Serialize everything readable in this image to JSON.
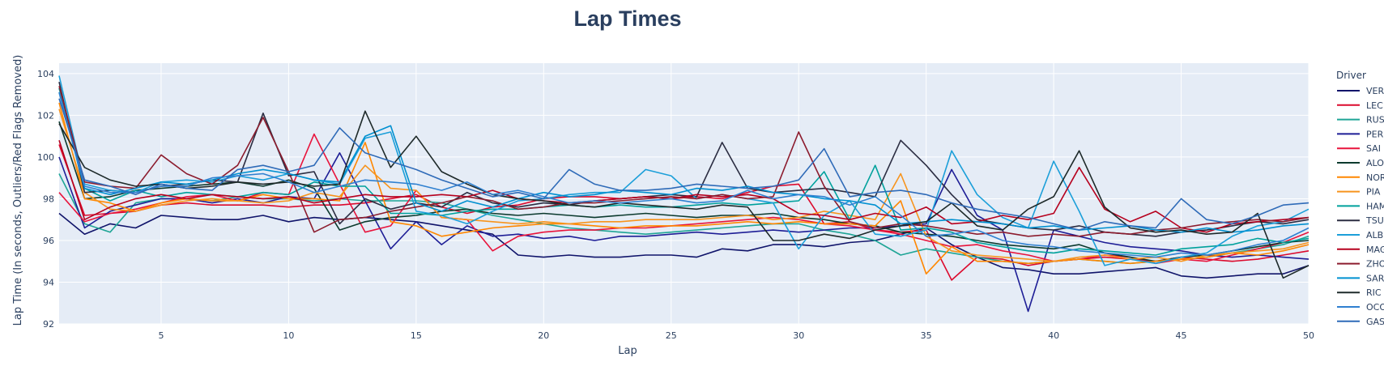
{
  "chart_data": {
    "type": "line",
    "title": "Lap Times",
    "xlabel": "Lap",
    "ylabel": "Lap Time (In seconds, Outliers/Red Flags Removed)",
    "xlim": [
      1,
      50
    ],
    "ylim": [
      92,
      104.5
    ],
    "x_ticks": [
      5,
      10,
      15,
      20,
      25,
      30,
      35,
      40,
      45,
      50
    ],
    "y_ticks": [
      92,
      94,
      96,
      98,
      100,
      102,
      104
    ],
    "grid": true,
    "legend_title": "Driver",
    "legend_position": "right",
    "plot_bgcolor": "#e5ecf6",
    "series": [
      {
        "name": "VER",
        "color": "#10146a",
        "values": [
          97.3,
          96.3,
          96.8,
          96.6,
          97.2,
          97.1,
          97.0,
          97.0,
          97.2,
          96.9,
          97.1,
          97.0,
          97.1,
          97.0,
          96.9,
          96.7,
          96.5,
          96.3,
          95.3,
          95.2,
          95.3,
          95.2,
          95.2,
          95.3,
          95.3,
          95.2,
          95.6,
          95.5,
          95.8,
          95.8,
          95.7,
          95.9,
          96.0,
          96.3,
          96.6,
          95.8,
          95.2,
          94.7,
          94.6,
          94.4,
          94.4,
          94.5,
          94.6,
          94.7,
          94.3,
          94.2,
          94.3,
          94.4,
          94.4,
          94.8
        ]
      },
      {
        "name": "LEC",
        "color": "#dc0a2d",
        "values": [
          100.6,
          97.2,
          97.3,
          97.4,
          97.7,
          97.8,
          97.7,
          97.7,
          97.7,
          97.6,
          97.7,
          97.7,
          97.8,
          98.0,
          98.2,
          97.6,
          97.3,
          97.6,
          97.7,
          98.0,
          98.1,
          98.1,
          98.0,
          98.1,
          98.0,
          98.1,
          98.0,
          98.3,
          98.6,
          98.7,
          96.8,
          96.9,
          96.5,
          96.4,
          96.5,
          94.1,
          95.2,
          95.1,
          94.8,
          95.0,
          95.1,
          95.2,
          95.1,
          95.0,
          95.2,
          95.1,
          95.0,
          95.1,
          95.3,
          95.5
        ]
      },
      {
        "name": "RUS",
        "color": "#1fa596",
        "values": [
          99.2,
          96.8,
          96.4,
          97.8,
          98.0,
          98.0,
          97.9,
          98.1,
          98.0,
          98.0,
          97.9,
          98.0,
          97.9,
          97.9,
          97.9,
          97.8,
          97.5,
          97.2,
          97.0,
          96.8,
          96.6,
          96.5,
          96.4,
          96.3,
          96.4,
          96.5,
          96.6,
          96.7,
          96.8,
          96.8,
          96.5,
          96.3,
          96.0,
          95.3,
          95.6,
          95.4,
          95.2,
          95.0,
          94.9,
          95.0,
          95.1,
          95.0,
          94.9,
          95.0,
          95.1,
          95.2,
          95.4,
          95.6,
          95.8,
          96.2
        ]
      },
      {
        "name": "PER",
        "color": "#1e1e96",
        "values": [
          100.0,
          96.6,
          97.4,
          97.7,
          98.0,
          98.0,
          97.8,
          98.0,
          97.8,
          98.1,
          98.0,
          100.2,
          97.9,
          95.6,
          96.9,
          95.8,
          96.7,
          96.2,
          96.3,
          96.1,
          96.2,
          96.0,
          96.2,
          96.2,
          96.3,
          96.4,
          96.3,
          96.4,
          96.5,
          96.4,
          96.5,
          96.6,
          96.6,
          96.7,
          96.8,
          99.4,
          97.2,
          96.5,
          92.6,
          96.5,
          96.2,
          95.9,
          95.7,
          95.6,
          95.5,
          95.3,
          95.2,
          95.3,
          95.2,
          95.1
        ]
      },
      {
        "name": "SAI",
        "color": "#e8143c",
        "values": [
          98.3,
          96.9,
          97.3,
          97.5,
          97.8,
          98.1,
          98.2,
          97.9,
          98.3,
          98.2,
          101.1,
          98.7,
          96.4,
          96.7,
          98.4,
          97.1,
          97.0,
          95.5,
          96.2,
          96.4,
          96.5,
          96.5,
          96.6,
          96.6,
          96.7,
          96.8,
          96.9,
          97.0,
          97.1,
          97.0,
          96.8,
          96.7,
          96.5,
          96.3,
          96.0,
          95.7,
          95.8,
          95.5,
          95.3,
          95.0,
          95.1,
          95.3,
          95.2,
          94.9,
          95.1,
          95.0,
          95.3,
          95.6,
          95.9,
          96.4
        ]
      },
      {
        "name": "ALO",
        "color": "#0c3a2e",
        "values": [
          101.7,
          98.0,
          98.1,
          98.4,
          98.5,
          98.6,
          98.7,
          98.8,
          98.6,
          98.9,
          98.5,
          96.5,
          96.9,
          97.1,
          97.2,
          97.4,
          97.5,
          97.3,
          97.2,
          97.3,
          97.2,
          97.1,
          97.2,
          97.3,
          97.2,
          97.1,
          97.2,
          97.2,
          97.3,
          97.1,
          97.0,
          96.8,
          96.7,
          96.4,
          96.3,
          96.2,
          96.0,
          95.8,
          95.7,
          95.6,
          95.8,
          95.4,
          95.2,
          95.0,
          95.2,
          95.3,
          95.5,
          95.7,
          95.9,
          96.0
        ]
      },
      {
        "name": "NOR",
        "color": "#ff8700",
        "values": [
          102.6,
          98.0,
          97.8,
          97.4,
          97.8,
          98.0,
          97.9,
          97.9,
          98.2,
          98.0,
          98.0,
          97.9,
          100.7,
          96.9,
          96.7,
          96.2,
          96.4,
          96.6,
          96.7,
          96.8,
          96.8,
          96.7,
          96.6,
          96.7,
          96.7,
          96.7,
          96.8,
          96.9,
          96.8,
          96.9,
          96.8,
          96.8,
          96.7,
          97.9,
          94.4,
          95.7,
          95.0,
          95.0,
          94.9,
          95.0,
          95.1,
          95.0,
          94.9,
          95.0,
          95.1,
          95.2,
          95.4,
          95.3,
          95.5,
          95.8
        ]
      },
      {
        "name": "PIA",
        "color": "#f7941d",
        "values": [
          102.3,
          98.3,
          97.5,
          97.4,
          97.7,
          97.9,
          98.0,
          97.9,
          97.8,
          97.9,
          98.3,
          98.1,
          99.6,
          98.5,
          98.4,
          97.1,
          97.0,
          96.9,
          96.8,
          96.9,
          96.8,
          96.9,
          96.9,
          97.0,
          97.0,
          97.0,
          97.1,
          97.2,
          97.0,
          97.1,
          97.4,
          97.2,
          97.0,
          99.2,
          96.2,
          95.5,
          95.3,
          95.2,
          95.1,
          95.0,
          95.2,
          95.3,
          95.1,
          95.2,
          95.0,
          95.3,
          95.4,
          95.5,
          95.6,
          95.9
        ]
      },
      {
        "name": "HAM",
        "color": "#00a19c",
        "values": [
          103.3,
          98.5,
          97.9,
          98.4,
          98.1,
          98.3,
          98.2,
          98.1,
          98.3,
          98.2,
          98.8,
          98.6,
          98.6,
          97.3,
          97.3,
          97.2,
          97.4,
          97.5,
          97.5,
          97.6,
          97.7,
          97.6,
          97.7,
          97.6,
          97.6,
          97.7,
          97.8,
          97.7,
          97.8,
          97.9,
          99.3,
          97.0,
          99.6,
          96.5,
          96.6,
          96.4,
          95.9,
          95.7,
          95.5,
          95.4,
          95.6,
          95.5,
          95.4,
          95.3,
          95.6,
          95.7,
          95.8,
          96.1,
          95.9,
          96.1
        ]
      },
      {
        "name": "TSU",
        "color": "#2b2d42",
        "values": [
          103.6,
          98.3,
          98.4,
          98.3,
          98.6,
          98.7,
          98.9,
          98.8,
          102.1,
          99.1,
          99.3,
          96.8,
          98.0,
          97.5,
          97.8,
          97.6,
          98.3,
          97.8,
          97.6,
          97.8,
          97.7,
          97.9,
          98.0,
          98.1,
          98.2,
          98.1,
          100.7,
          98.5,
          98.3,
          98.4,
          98.5,
          98.3,
          98.1,
          100.8,
          99.6,
          98.2,
          97.0,
          96.8,
          96.6,
          96.5,
          96.7,
          96.4,
          96.3,
          96.2,
          96.4,
          96.5,
          96.7,
          96.9,
          96.8,
          97.0
        ]
      },
      {
        "name": "ALB",
        "color": "#1c9fd9",
        "values": [
          103.9,
          98.7,
          98.4,
          98.3,
          98.8,
          98.9,
          98.8,
          99.1,
          98.9,
          99.2,
          98.9,
          98.7,
          100.9,
          101.2,
          97.4,
          97.2,
          96.8,
          97.4,
          97.9,
          98.0,
          98.2,
          98.3,
          98.3,
          99.4,
          99.1,
          98.0,
          98.2,
          98.0,
          97.8,
          95.6,
          97.2,
          97.9,
          96.3,
          96.2,
          96.5,
          100.3,
          98.2,
          97.1,
          96.6,
          99.8,
          97.4,
          94.8,
          95.1,
          94.9,
          95.2,
          95.4,
          96.2,
          96.7,
          96.9,
          97.5
        ]
      },
      {
        "name": "MAG",
        "color": "#b6001e",
        "values": [
          100.8,
          97.0,
          97.6,
          98.0,
          98.2,
          98.0,
          98.2,
          98.1,
          98.0,
          98.1,
          97.8,
          98.0,
          98.2,
          98.1,
          98.1,
          98.2,
          98.1,
          98.4,
          98.0,
          97.9,
          97.8,
          97.9,
          98.0,
          98.1,
          98.0,
          98.2,
          98.1,
          98.2,
          98.0,
          97.3,
          97.2,
          97.0,
          97.3,
          97.1,
          97.6,
          96.8,
          96.9,
          97.2,
          97.0,
          97.3,
          99.5,
          97.5,
          96.9,
          97.4,
          96.6,
          96.4,
          96.8,
          96.9,
          97.0,
          97.1
        ]
      },
      {
        "name": "ZHO",
        "color": "#8c1c2e",
        "values": [
          103.4,
          98.8,
          98.6,
          98.5,
          100.1,
          99.2,
          98.7,
          99.6,
          101.9,
          99.3,
          96.4,
          97.0,
          97.1,
          97.4,
          97.6,
          97.8,
          98.1,
          97.9,
          97.5,
          97.6,
          97.8,
          97.8,
          97.9,
          98.0,
          98.1,
          98.0,
          98.2,
          98.0,
          98.1,
          101.2,
          98.6,
          96.9,
          96.6,
          96.8,
          96.7,
          96.5,
          96.3,
          96.4,
          96.2,
          96.3,
          96.2,
          96.4,
          96.3,
          96.5,
          96.6,
          96.8,
          96.9,
          97.0,
          96.9,
          97.1
        ]
      },
      {
        "name": "SAR",
        "color": "#0090d0",
        "values": [
          103.1,
          98.5,
          98.2,
          98.5,
          98.8,
          98.7,
          98.9,
          99.2,
          99.4,
          99.2,
          98.9,
          98.8,
          101.0,
          101.5,
          97.8,
          97.4,
          97.9,
          97.6,
          98.0,
          98.3,
          98.1,
          98.2,
          98.4,
          98.3,
          98.2,
          98.5,
          98.4,
          98.6,
          98.3,
          98.2,
          98.0,
          97.9,
          97.7,
          96.8,
          96.9,
          97.0,
          96.9,
          96.8,
          96.6,
          96.7,
          96.5,
          96.6,
          96.7,
          96.5,
          96.4,
          96.6,
          96.4,
          96.5,
          96.7,
          96.8
        ]
      },
      {
        "name": "RIC",
        "color": "#1e2a2a",
        "values": [
          101.6,
          99.5,
          98.9,
          98.6,
          98.7,
          98.5,
          98.6,
          98.8,
          98.7,
          98.8,
          98.6,
          98.7,
          102.2,
          99.5,
          101.0,
          99.3,
          98.7,
          98.2,
          98.0,
          97.9,
          97.7,
          97.6,
          97.8,
          97.7,
          97.6,
          97.5,
          97.7,
          97.6,
          96.0,
          96.0,
          96.3,
          96.1,
          96.5,
          96.7,
          96.9,
          97.8,
          96.7,
          96.5,
          97.5,
          98.1,
          100.3,
          97.6,
          96.6,
          96.4,
          96.5,
          96.3,
          96.4,
          97.3,
          94.2,
          94.8
        ]
      },
      {
        "name": "OCO",
        "color": "#2f80d0",
        "values": [
          103.1,
          98.6,
          98.3,
          98.3,
          98.6,
          98.6,
          99.0,
          99.1,
          99.2,
          98.8,
          98.3,
          98.6,
          98.9,
          98.8,
          98.7,
          98.4,
          98.8,
          98.2,
          98.4,
          98.1,
          97.8,
          97.9,
          97.8,
          97.9,
          98.0,
          97.8,
          97.9,
          98.4,
          98.0,
          98.2,
          98.1,
          97.7,
          98.1,
          97.2,
          96.2,
          96.3,
          96.5,
          96.0,
          95.8,
          95.7,
          95.5,
          95.4,
          95.3,
          95.2,
          95.4,
          95.3,
          95.5,
          95.8,
          96.0,
          96.6
        ]
      },
      {
        "name": "GAS",
        "color": "#2f6bb8",
        "values": [
          102.8,
          98.9,
          98.6,
          98.2,
          98.7,
          98.5,
          98.4,
          99.4,
          99.6,
          99.3,
          99.6,
          101.4,
          100.2,
          99.8,
          99.4,
          98.9,
          98.5,
          98.1,
          98.3,
          98.0,
          99.4,
          98.7,
          98.4,
          98.4,
          98.5,
          98.7,
          98.6,
          98.5,
          98.6,
          98.9,
          100.4,
          98.1,
          98.3,
          98.4,
          98.2,
          97.8,
          97.5,
          97.3,
          97.1,
          96.8,
          96.5,
          96.9,
          96.7,
          96.6,
          98.0,
          97.0,
          96.8,
          97.2,
          97.7,
          97.8
        ]
      }
    ]
  }
}
